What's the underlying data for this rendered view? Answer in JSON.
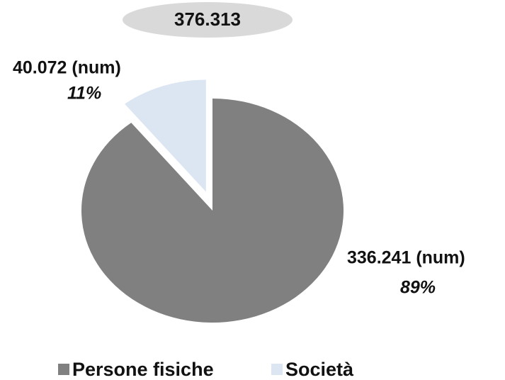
{
  "chart_data": {
    "type": "pie",
    "total": 376313,
    "total_label": "376.313",
    "categories": [
      "Persone fisiche",
      "Società"
    ],
    "values": [
      336241,
      40072
    ],
    "value_labels": [
      "336.241 (num)",
      "40.072 (num)"
    ],
    "percents": [
      89,
      11
    ],
    "percent_labels": [
      "89%",
      "11%"
    ],
    "colors": [
      "#808080",
      "#dce6f2"
    ],
    "exploded": [
      false,
      true
    ],
    "legend": "bottom"
  }
}
